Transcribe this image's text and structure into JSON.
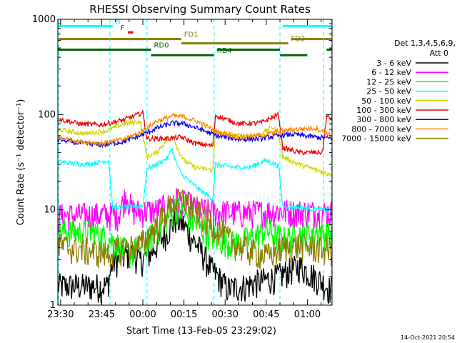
{
  "chart_data": {
    "type": "line",
    "title": "RHESSI Observing Summary Count Rates",
    "xlabel": "Start Time (13-Feb-05 23:29:02)",
    "ylabel": "Count Rate (s⁻¹ detector⁻¹)",
    "y_scale": "log",
    "ylim": [
      1,
      1000
    ],
    "xlim_minutes": [
      0,
      100
    ],
    "x_ticks": [
      {
        "label": "23:30",
        "t": 1
      },
      {
        "label": "23:45",
        "t": 16
      },
      {
        "label": "00:00",
        "t": 31
      },
      {
        "label": "00:15",
        "t": 46
      },
      {
        "label": "00:30",
        "t": 61
      },
      {
        "label": "00:45",
        "t": 76
      },
      {
        "label": "01:00",
        "t": 91
      }
    ],
    "y_ticks": [
      {
        "label": "1",
        "v": 1
      },
      {
        "label": "10",
        "v": 10
      },
      {
        "label": "100",
        "v": 100
      },
      {
        "label": "1000",
        "v": 1000
      }
    ],
    "legend": {
      "header": "Det 1,3,4,5,6,9,",
      "subheader": "Att 0",
      "position": "right",
      "entries": [
        {
          "label": "3 - 6 keV",
          "color": "#000000"
        },
        {
          "label": "6 - 12 keV",
          "color": "#ff00ff"
        },
        {
          "label": "12 - 25 keV",
          "color": "#00ff00"
        },
        {
          "label": "25 - 50 keV",
          "color": "#00ffff"
        },
        {
          "label": "50 - 100 keV",
          "color": "#d4d400"
        },
        {
          "label": "100 - 300 keV",
          "color": "#ee0000"
        },
        {
          "label": "300 - 800 keV",
          "color": "#0000ee"
        },
        {
          "label": "800 - 7000 keV",
          "color": "#ff8800"
        },
        {
          "label": "7000 - 15000 keV",
          "color": "#8b7d00"
        }
      ]
    },
    "flag_bars": [
      {
        "label": "N",
        "color": "#00ffff",
        "value": 850,
        "segments": [
          [
            0,
            20
          ],
          [
            82,
            100
          ]
        ]
      },
      {
        "label": "F",
        "color": "#ee0000",
        "value": 730,
        "segments": [
          [
            25.5,
            27.5
          ]
        ]
      },
      {
        "label": "FD1",
        "color": "#8b7d00",
        "value": 620,
        "segments": [
          [
            0,
            45
          ],
          [
            85,
            100
          ]
        ]
      },
      {
        "label": "FD2",
        "color": "#8b7d00",
        "value": 560,
        "segments": [
          [
            45,
            84
          ]
        ]
      },
      {
        "label": "RD0",
        "color": "#006600",
        "value": 480,
        "segments": [
          [
            0,
            34
          ],
          [
            58,
            81
          ],
          [
            98,
            100
          ]
        ]
      },
      {
        "label": "RD4",
        "color": "#006600",
        "value": 420,
        "segments": [
          [
            34,
            57
          ],
          [
            81,
            91
          ]
        ]
      }
    ],
    "eclipse_markers_minutes": [
      0,
      19,
      32.5,
      57,
      81,
      97,
      100
    ],
    "series": [
      {
        "name": "3 - 6 keV",
        "color": "#000000",
        "t": [
          0,
          18,
          20,
          27,
          30,
          34,
          40,
          43,
          46,
          48,
          52,
          56,
          62,
          68,
          74,
          80,
          88,
          96,
          99
        ],
        "v": [
          1.6,
          1.6,
          2.8,
          3.6,
          2.9,
          3.6,
          6.0,
          8.0,
          7.0,
          5.5,
          3.8,
          2.4,
          1.5,
          1.6,
          1.8,
          2.0,
          2.6,
          1.8,
          1.5
        ]
      },
      {
        "name": "6 - 12 keV",
        "color": "#ff00ff",
        "t": [
          0,
          22,
          25,
          27,
          30,
          36,
          40,
          43,
          46,
          52,
          58,
          66,
          74,
          80,
          86,
          94,
          99
        ],
        "v": [
          8.7,
          9.0,
          15.0,
          10.0,
          9.6,
          10.0,
          11.0,
          13.0,
          12.0,
          10.0,
          9.6,
          9.4,
          9.5,
          9.8,
          9.6,
          9.5,
          9.4
        ]
      },
      {
        "name": "12 - 25 keV",
        "color": "#00ff00",
        "t": [
          0,
          14,
          20,
          26,
          32,
          38,
          43,
          47,
          52,
          58,
          64,
          70,
          76,
          82,
          88,
          94,
          99
        ],
        "v": [
          6.0,
          5.8,
          4.8,
          3.5,
          4.5,
          7.0,
          11.0,
          8.5,
          6.5,
          5.0,
          4.5,
          5.0,
          6.2,
          5.0,
          5.5,
          6.0,
          5.5
        ]
      },
      {
        "name": "25 - 50 keV",
        "color": "#00ffff",
        "t": [
          0,
          10,
          18.5,
          20,
          31,
          32.5,
          36,
          40,
          41.5,
          43,
          45,
          48,
          52,
          56.5,
          57.5,
          64,
          70,
          76,
          80.5,
          82,
          90,
          96.5,
          98
        ],
        "v": [
          32,
          30,
          33,
          10.5,
          11,
          27,
          30,
          35,
          45,
          32,
          24,
          20,
          16,
          13,
          30,
          28,
          28,
          33,
          29,
          11,
          10.5,
          10,
          10
        ]
      },
      {
        "name": "50 - 100 keV",
        "color": "#d4d400",
        "t": [
          0,
          10,
          18,
          24,
          30,
          32.5,
          36,
          40,
          42,
          44,
          46,
          50,
          56.5,
          57.5,
          66,
          74,
          78,
          80.5,
          82,
          88,
          96.5,
          98
        ],
        "v": [
          70,
          63,
          68,
          80,
          85,
          36,
          40,
          55,
          60,
          42,
          33,
          28,
          26,
          66,
          60,
          62,
          74,
          66,
          36,
          30,
          25,
          24
        ]
      },
      {
        "name": "100 - 300 keV",
        "color": "#ee0000",
        "t": [
          0,
          8,
          16,
          24,
          31,
          32.5,
          40,
          45,
          50,
          56.5,
          57.5,
          66,
          74,
          80.5,
          82,
          88,
          96.5,
          98,
          100
        ],
        "v": [
          90,
          80,
          78,
          88,
          105,
          56,
          56,
          58,
          50,
          47,
          98,
          80,
          82,
          100,
          45,
          40,
          40,
          95,
          90
        ]
      },
      {
        "name": "300 - 800 keV",
        "color": "#0000ee",
        "t": [
          0,
          8,
          16,
          24,
          30,
          36,
          42,
          46,
          52,
          58,
          66,
          74,
          80,
          86,
          94,
          100
        ],
        "v": [
          55,
          50,
          48,
          52,
          60,
          72,
          82,
          80,
          70,
          60,
          55,
          56,
          60,
          62,
          58,
          56
        ]
      },
      {
        "name": "800 - 7000 keV",
        "color": "#ff8800",
        "t": [
          0,
          8,
          16,
          24,
          30,
          36,
          42,
          46,
          52,
          58,
          66,
          74,
          80,
          86,
          94,
          100
        ],
        "v": [
          58,
          52,
          50,
          55,
          65,
          85,
          97,
          95,
          82,
          66,
          58,
          60,
          66,
          70,
          72,
          60
        ]
      },
      {
        "name": "7000 - 15000 keV",
        "color": "#8b7d00",
        "t": [
          0,
          10,
          18,
          24,
          30,
          36,
          42,
          46,
          50,
          54,
          58,
          64,
          70,
          76,
          82,
          88,
          94,
          99
        ],
        "v": [
          4.2,
          3.8,
          3.5,
          4.0,
          4.3,
          7.0,
          12.0,
          13.0,
          10.0,
          8.0,
          6.5,
          4.5,
          3.8,
          3.3,
          4.0,
          4.3,
          4.0,
          3.8
        ]
      }
    ]
  },
  "footer": {
    "timestamp": "14-Oct-2021 20:54"
  }
}
